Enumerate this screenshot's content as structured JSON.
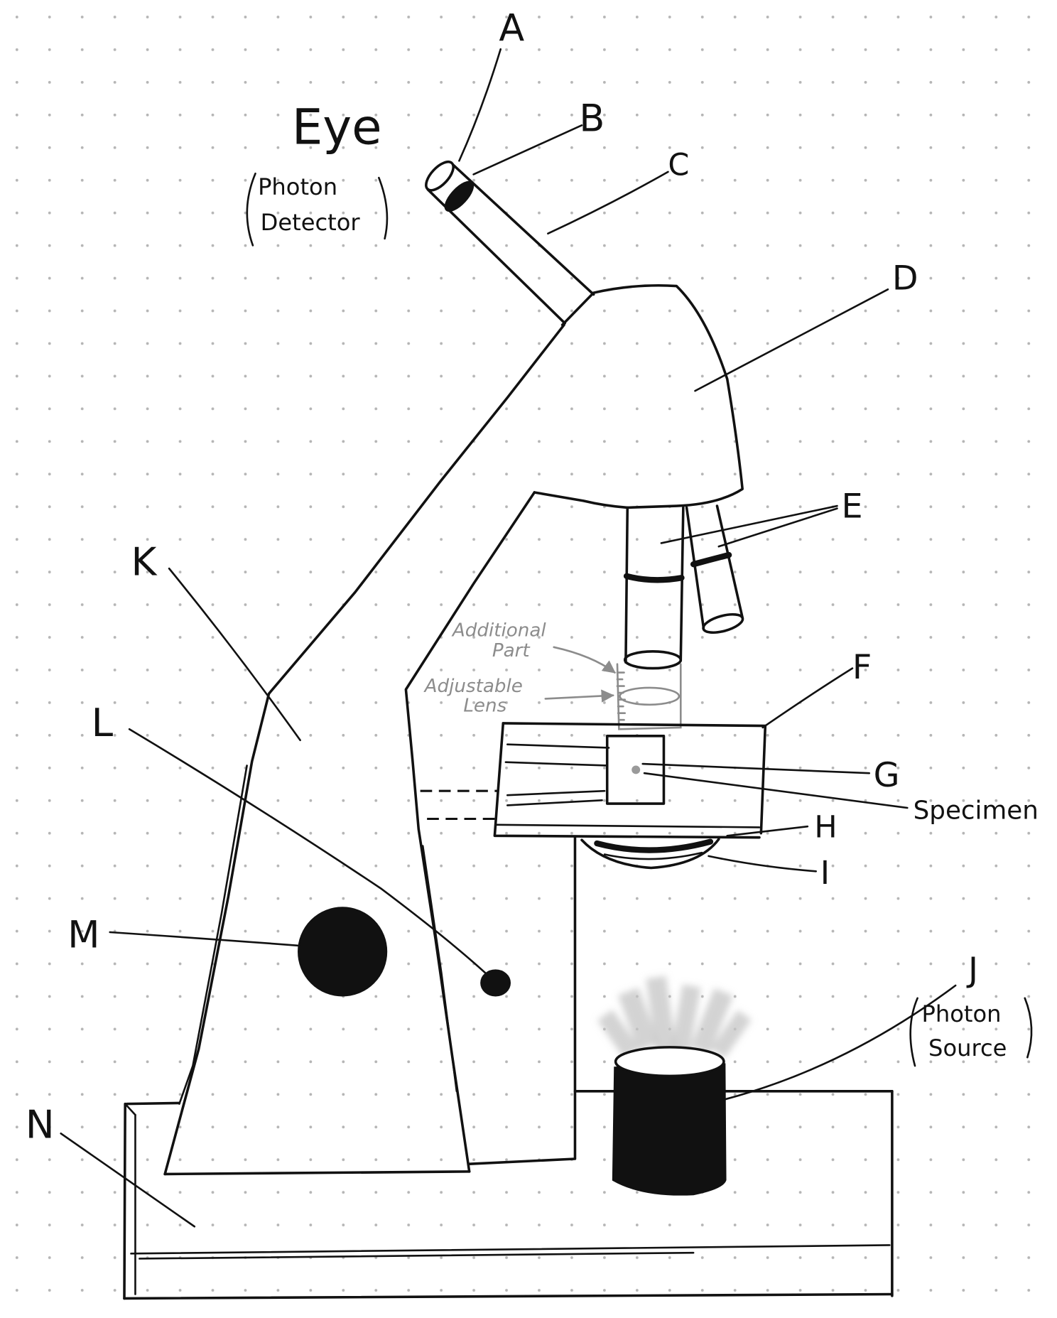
{
  "part_labels": {
    "a": "A",
    "b": "B",
    "c": "C",
    "d": "D",
    "e": "E",
    "f": "F",
    "g": "G",
    "h": "H",
    "i": "I",
    "j": "J",
    "k": "K",
    "l": "L",
    "m": "M",
    "n": "N"
  },
  "annotations": {
    "eye": "Eye",
    "photon_detector": [
      "Photon",
      "Detector"
    ],
    "additional_part": [
      "Additional",
      "Part"
    ],
    "adjustable_lens": [
      "Adjustable",
      "Lens"
    ],
    "specimen": "Specimen",
    "photon_source": [
      "Photon",
      "Source"
    ]
  },
  "colors": {
    "paper": "#ffffff",
    "ink": "#111111",
    "pencil": "#8c8c8c",
    "grid": "#b5b5b5",
    "rays": "#c4c4c4"
  }
}
